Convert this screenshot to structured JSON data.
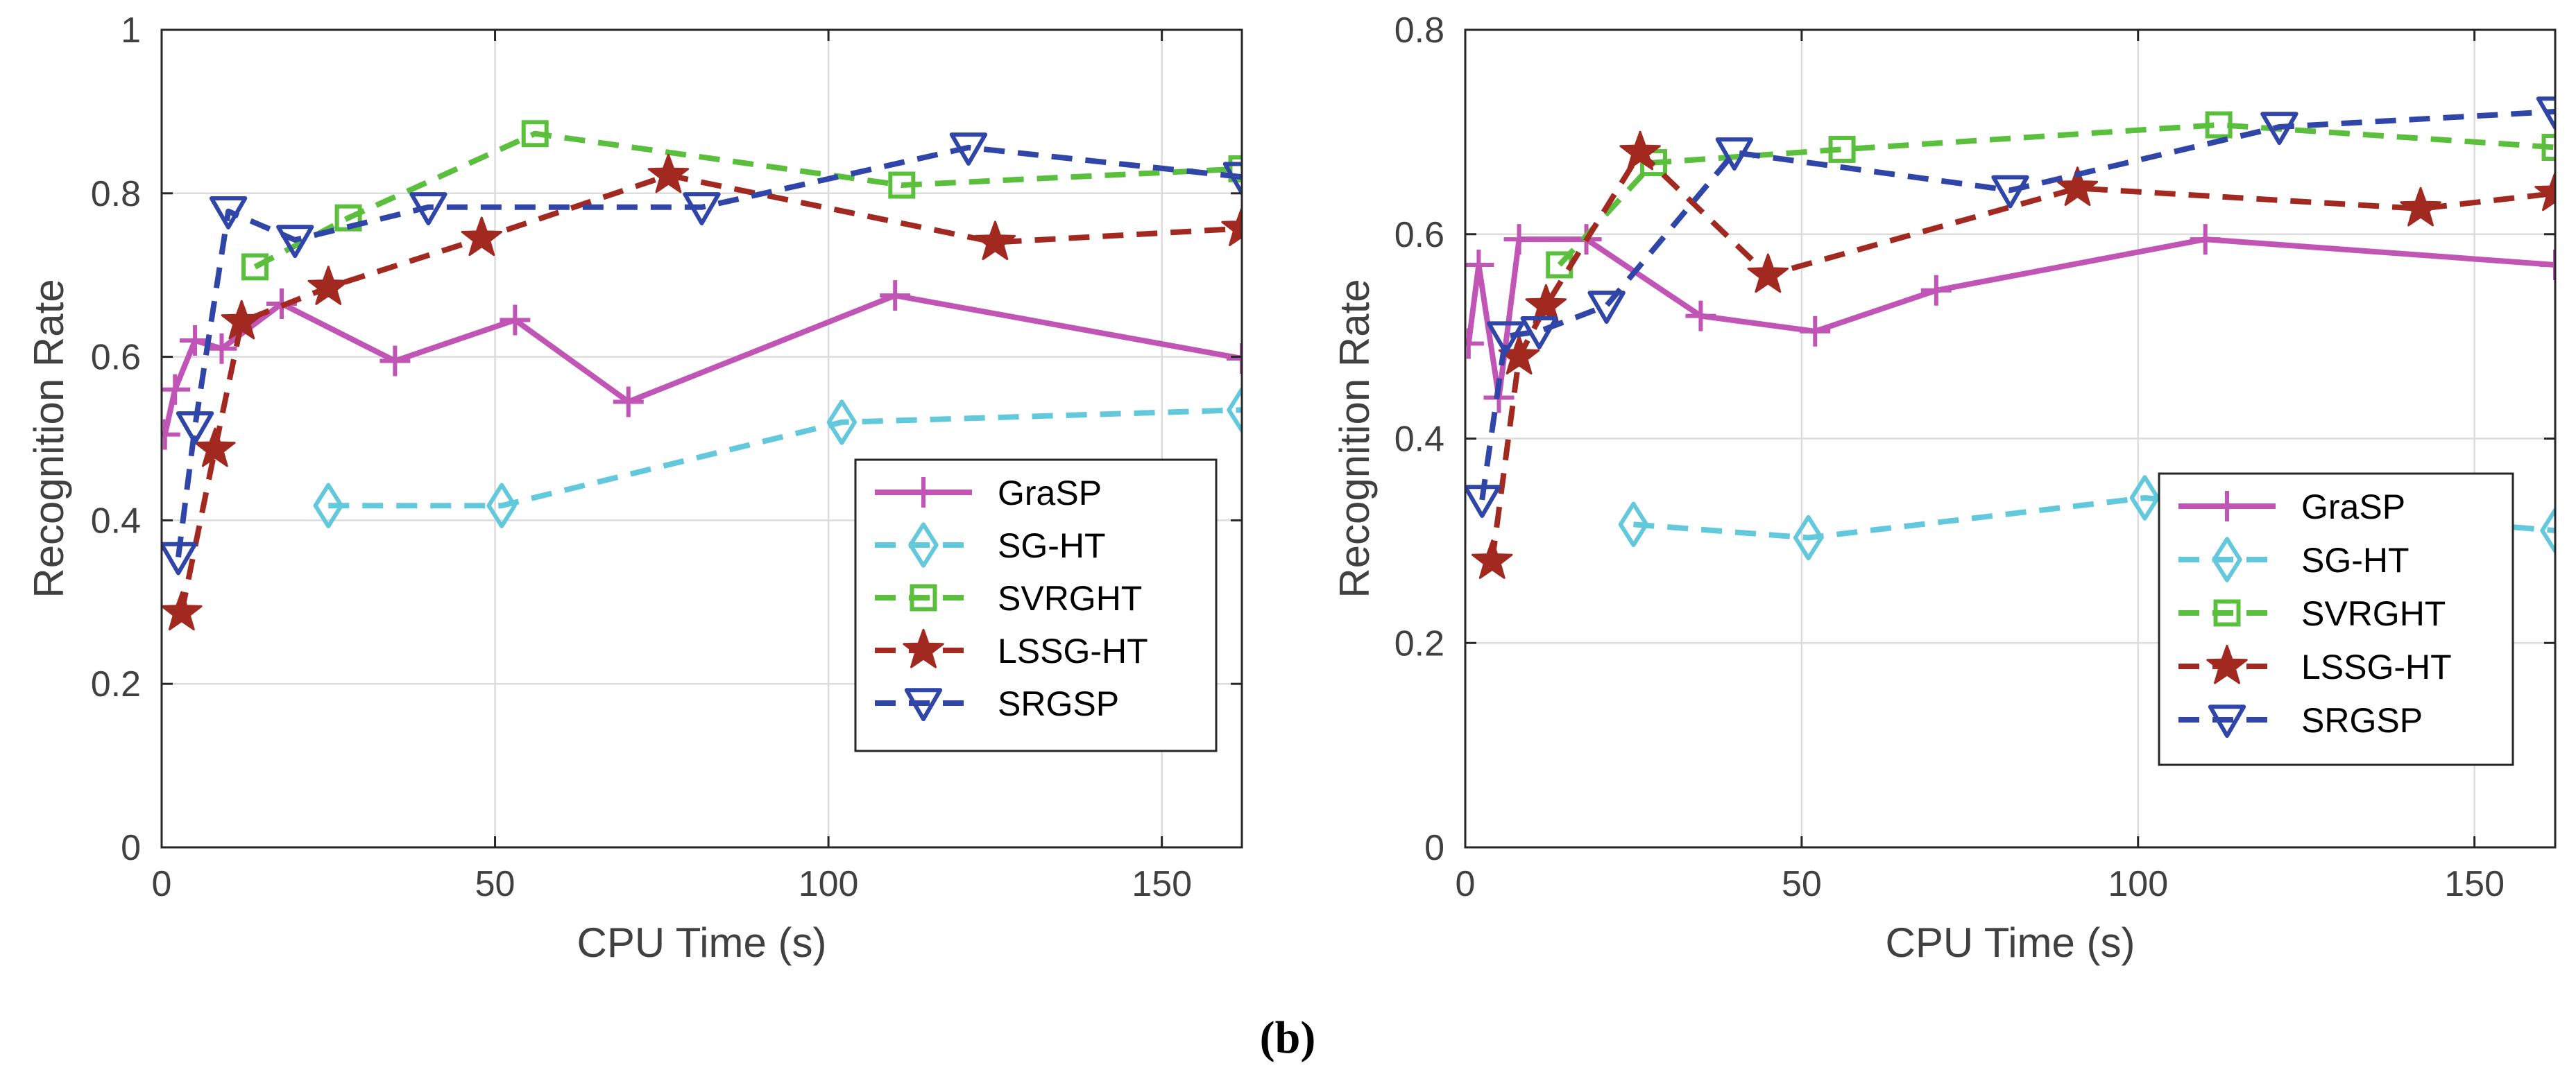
{
  "caption": "(b)",
  "colors": {
    "GraSP": "#c055b5",
    "SG-HT": "#62c8dc",
    "SVRGHT": "#5bbf3e",
    "LSSG-HT": "#a2291f",
    "SRGSP": "#2f46a8",
    "axis": "#262626",
    "grid": "#dcdcdc",
    "text": "#404040"
  },
  "chart_data": [
    {
      "type": "line",
      "title": "",
      "xlabel": "CPU Time (s)",
      "ylabel": "Recognition Rate",
      "xlim": [
        0,
        162
      ],
      "ylim": [
        0,
        1
      ],
      "xticks": [
        0,
        50,
        100,
        150
      ],
      "yticks": [
        0,
        0.2,
        0.4,
        0.6,
        0.8,
        1
      ],
      "xtick_labels": [
        "0",
        "50",
        "100",
        "150"
      ],
      "ytick_labels": [
        "0",
        "0.2",
        "0.4",
        "0.6",
        "0.8",
        "1"
      ],
      "grid": true,
      "legend_position": "lower-right",
      "series": [
        {
          "name": "GraSP",
          "marker": "plus",
          "dash": "solid",
          "x": [
            0.5,
            2,
            5,
            9,
            18,
            35,
            53,
            70,
            110,
            162
          ],
          "y": [
            0.505,
            0.56,
            0.62,
            0.61,
            0.665,
            0.595,
            0.645,
            0.545,
            0.675,
            0.598
          ]
        },
        {
          "name": "SG-HT",
          "marker": "diamond",
          "dash": "dashed",
          "x": [
            25,
            51,
            102,
            162
          ],
          "y": [
            0.418,
            0.418,
            0.52,
            0.535
          ]
        },
        {
          "name": "SVRGHT",
          "marker": "square",
          "dash": "dashed",
          "x": [
            14,
            28,
            56,
            111,
            162
          ],
          "y": [
            0.71,
            0.77,
            0.873,
            0.81,
            0.83
          ]
        },
        {
          "name": "LSSG-HT",
          "marker": "star",
          "dash": "dashed",
          "x": [
            3,
            8,
            12,
            25,
            48,
            76,
            125,
            162
          ],
          "y": [
            0.287,
            0.487,
            0.643,
            0.685,
            0.745,
            0.822,
            0.74,
            0.757
          ]
        },
        {
          "name": "SRGSP",
          "marker": "triangle-down",
          "dash": "dashed",
          "x": [
            2.5,
            5,
            10,
            20,
            40,
            81,
            121,
            162
          ],
          "y": [
            0.355,
            0.515,
            0.778,
            0.743,
            0.783,
            0.783,
            0.856,
            0.82
          ]
        }
      ]
    },
    {
      "type": "line",
      "title": "",
      "xlabel": "CPU Time (s)",
      "ylabel": "Recognition Rate",
      "xlim": [
        0,
        162
      ],
      "ylim": [
        0,
        0.8
      ],
      "xticks": [
        0,
        50,
        100,
        150
      ],
      "yticks": [
        0,
        0.2,
        0.4,
        0.6,
        0.8
      ],
      "xtick_labels": [
        "0",
        "50",
        "100",
        "150"
      ],
      "ytick_labels": [
        "0",
        "0.2",
        "0.4",
        "0.6",
        "0.8"
      ],
      "grid": true,
      "legend_position": "lower-right",
      "series": [
        {
          "name": "GraSP",
          "marker": "plus",
          "dash": "solid",
          "x": [
            0.5,
            2,
            5,
            8,
            18,
            35,
            52,
            70,
            110,
            162
          ],
          "y": [
            0.493,
            0.57,
            0.44,
            0.595,
            0.595,
            0.52,
            0.505,
            0.545,
            0.595,
            0.57
          ]
        },
        {
          "name": "SG-HT",
          "marker": "diamond",
          "dash": "dashed",
          "x": [
            25,
            51,
            101,
            162
          ],
          "y": [
            0.316,
            0.303,
            0.342,
            0.31
          ]
        },
        {
          "name": "SVRGHT",
          "marker": "square",
          "dash": "dashed",
          "x": [
            14,
            28,
            56,
            112,
            162
          ],
          "y": [
            0.57,
            0.67,
            0.683,
            0.707,
            0.685
          ]
        },
        {
          "name": "LSSG-HT",
          "marker": "star",
          "dash": "dashed",
          "x": [
            4,
            8,
            12,
            26,
            45,
            91,
            142,
            162
          ],
          "y": [
            0.28,
            0.48,
            0.53,
            0.68,
            0.56,
            0.645,
            0.625,
            0.64
          ]
        },
        {
          "name": "SRGSP",
          "marker": "triangle-down",
          "dash": "dashed",
          "x": [
            2.5,
            6,
            11,
            21,
            40,
            81,
            121,
            162
          ],
          "y": [
            0.34,
            0.5,
            0.505,
            0.53,
            0.68,
            0.643,
            0.705,
            0.72
          ]
        }
      ]
    }
  ]
}
